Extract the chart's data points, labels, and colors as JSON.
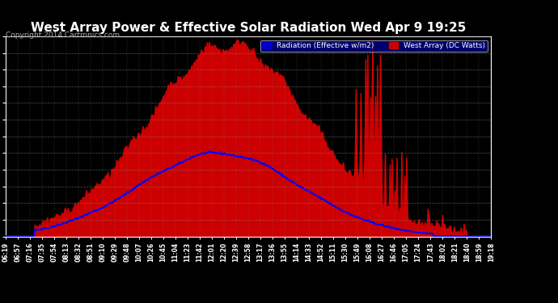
{
  "title": "West Array Power & Effective Solar Radiation Wed Apr 9 19:25",
  "copyright": "Copyright 2014 Cartronics.com",
  "legend_radiation": "Radiation (Effective w/m2)",
  "legend_west": "West Array (DC Watts)",
  "legend_radiation_bg": "#0000cc",
  "legend_west_bg": "#cc0000",
  "bg_color": "#000000",
  "plot_bg_color": "#000000",
  "grid_color": "#888888",
  "title_color": "#ffffff",
  "tick_color": "#ffffff",
  "yticks": [
    -1.5,
    144.9,
    291.2,
    437.6,
    584.0,
    730.3,
    876.7,
    1023.0,
    1169.4,
    1315.8,
    1462.1,
    1608.5,
    1754.8
  ],
  "ymin": -1.5,
  "ymax": 1754.8,
  "xtick_labels": [
    "06:19",
    "06:57",
    "07:16",
    "07:35",
    "07:54",
    "08:13",
    "08:32",
    "08:51",
    "09:10",
    "09:29",
    "09:48",
    "10:07",
    "10:26",
    "10:45",
    "11:04",
    "11:23",
    "11:42",
    "12:01",
    "12:20",
    "12:39",
    "12:58",
    "13:17",
    "13:36",
    "13:55",
    "14:14",
    "14:33",
    "14:52",
    "15:11",
    "15:30",
    "15:49",
    "16:08",
    "16:27",
    "16:46",
    "17:05",
    "17:24",
    "17:43",
    "18:02",
    "18:21",
    "18:40",
    "18:59",
    "19:18"
  ],
  "red_fill_color": "#cc0000",
  "blue_line_color": "#0000ff",
  "red_line_color": "#cc0000",
  "n_points": 500
}
